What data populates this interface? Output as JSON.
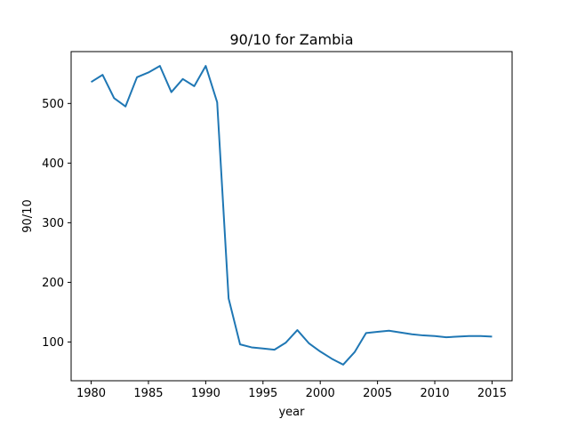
{
  "chart_data": {
    "type": "line",
    "title": "90/10 for Zambia",
    "xlabel": "year",
    "ylabel": "90/10",
    "xlim": [
      1978.25,
      2016.75
    ],
    "ylim": [
      35,
      587
    ],
    "x_ticks": [
      1980,
      1985,
      1990,
      1995,
      2000,
      2005,
      2010,
      2015
    ],
    "y_ticks": [
      100,
      200,
      300,
      400,
      500
    ],
    "grid": false,
    "line_color": "#1f77b4",
    "series": [
      {
        "x": [
          1980,
          1981,
          1982,
          1983,
          1984,
          1985,
          1986,
          1987,
          1988,
          1989,
          1990,
          1991,
          1992,
          1993,
          1994,
          1995,
          1996,
          1997,
          1998,
          1999,
          2000,
          2001,
          2002,
          2003,
          2004,
          2005,
          2006,
          2007,
          2008,
          2009,
          2010,
          2011,
          2012,
          2013,
          2014,
          2015
        ],
        "values": [
          536,
          548,
          509,
          495,
          544,
          552,
          563,
          519,
          541,
          529,
          563,
          502,
          173,
          96,
          91,
          89,
          87,
          99,
          120,
          98,
          84,
          72,
          62,
          83,
          115,
          117,
          119,
          116,
          113,
          111,
          110,
          108,
          109,
          110,
          110,
          109
        ]
      }
    ]
  }
}
